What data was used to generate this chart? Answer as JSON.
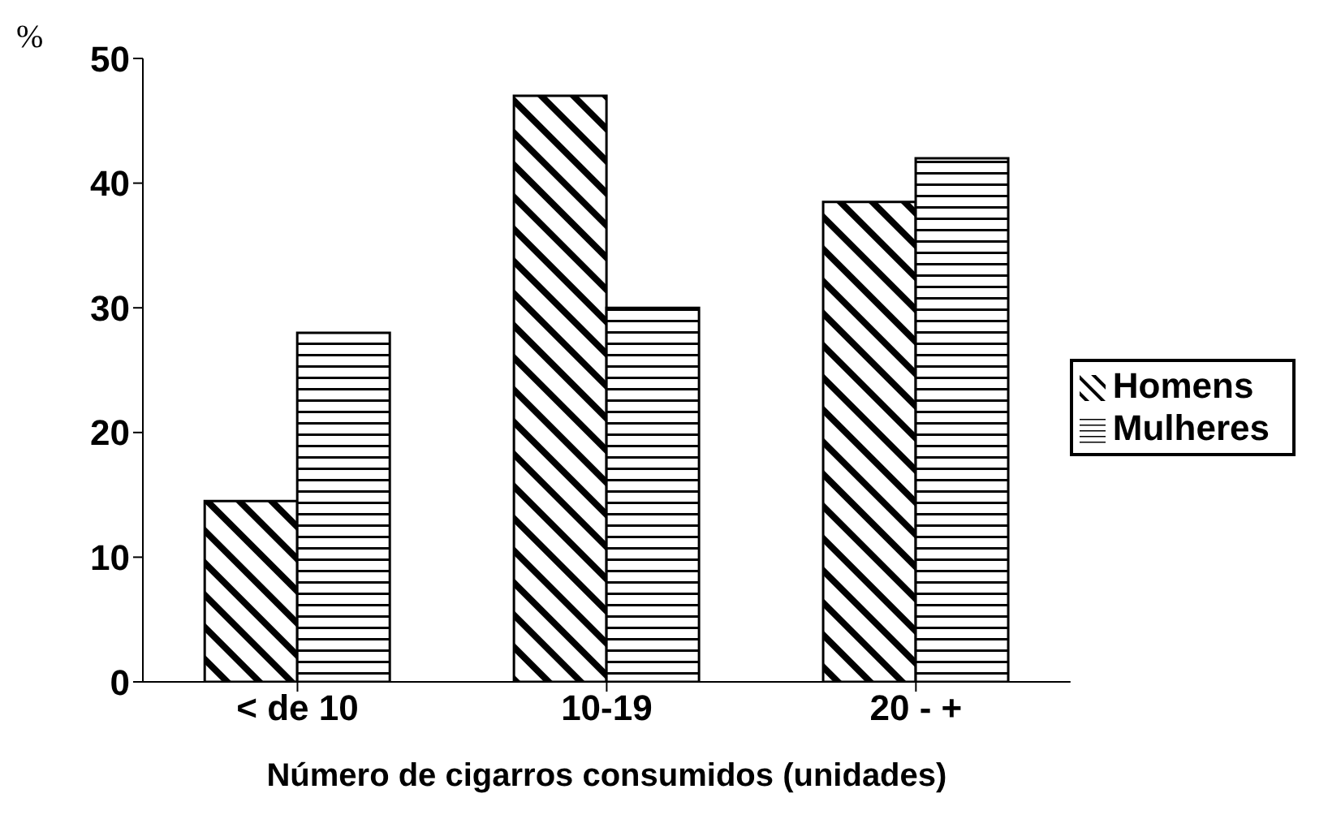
{
  "chart_data": {
    "type": "bar",
    "xlabel": "Número de cigarros consumidos (unidades)",
    "ylabel": "%",
    "categories": [
      "< de 10",
      "10-19",
      "20 - +"
    ],
    "series": [
      {
        "name": "Homens",
        "color": "#000000",
        "values": [
          14.5,
          47,
          38.5
        ]
      },
      {
        "name": "Mulheres",
        "color": "#000000",
        "values": [
          28,
          30,
          42
        ]
      }
    ],
    "ylim": [
      0,
      50
    ],
    "yticks": [
      0,
      10,
      20,
      30,
      40,
      50
    ],
    "grid": false,
    "legend": "right"
  }
}
